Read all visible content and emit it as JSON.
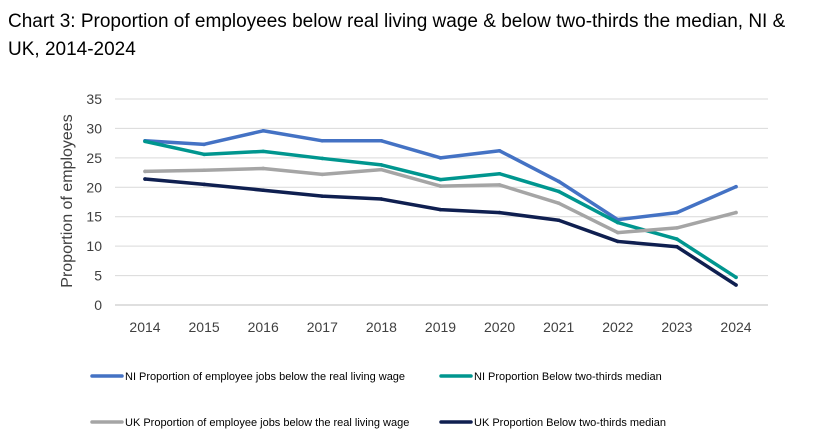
{
  "chart_data": {
    "type": "line",
    "title": "Chart 3:  Proportion of employees below real living wage & below two-thirds the median, NI & UK, 2014-2024",
    "ylabel": "Proportion of employees",
    "xlabel": "",
    "ylim": [
      0,
      35
    ],
    "yticks": [
      0,
      5,
      10,
      15,
      20,
      25,
      30,
      35
    ],
    "grid": true,
    "legend_position": "bottom",
    "categories": [
      "2014",
      "2015",
      "2016",
      "2017",
      "2018",
      "2019",
      "2020",
      "2021",
      "2022",
      "2023",
      "2024"
    ],
    "series": [
      {
        "name": "NI Proportion of employee jobs below the real living wage",
        "color": "#4472C4",
        "values": [
          27.9,
          27.3,
          29.6,
          27.9,
          27.9,
          25.0,
          26.2,
          21.0,
          14.5,
          15.7,
          20.1
        ]
      },
      {
        "name": "NI Proportion Below two-thirds median",
        "color": "#00968F",
        "values": [
          27.8,
          25.6,
          26.1,
          24.9,
          23.8,
          21.3,
          22.3,
          19.3,
          14.0,
          11.2,
          4.7
        ]
      },
      {
        "name": "UK Proportion of employee jobs below the real living wage",
        "color": "#A5A5A5",
        "values": [
          22.7,
          22.9,
          23.2,
          22.2,
          23.0,
          20.2,
          20.4,
          17.3,
          12.3,
          13.1,
          15.7
        ]
      },
      {
        "name": "UK Proportion Below two-thirds median",
        "color": "#0F1F50",
        "values": [
          21.4,
          20.5,
          19.5,
          18.5,
          18.0,
          16.2,
          15.7,
          14.4,
          10.8,
          9.9,
          3.4
        ]
      }
    ]
  }
}
